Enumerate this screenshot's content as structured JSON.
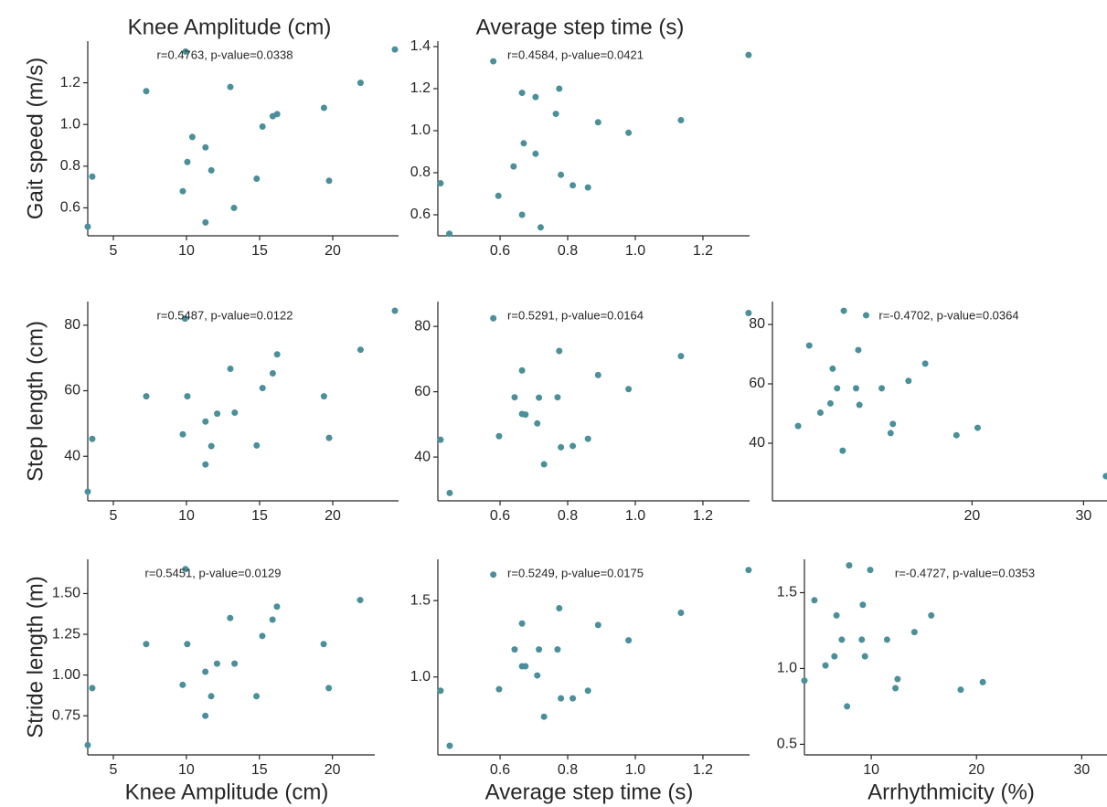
{
  "chart_data": [
    {
      "type": "scatter",
      "title": "Knee Amplitude (cm)",
      "y_label": "Gait speed (m/s)",
      "annotation": "r=0.4763, p-value=0.0338",
      "color": "#4a8f99",
      "x": [
        3.25,
        3.56,
        7.25,
        9.94,
        10.06,
        9.75,
        10.4,
        11.3,
        11.7,
        11.3,
        13.0,
        13.25,
        14.8,
        15.2,
        15.9,
        16.2,
        19.4,
        19.75,
        21.9,
        24.25
      ],
      "y": [
        0.51,
        0.75,
        1.16,
        1.35,
        0.82,
        0.68,
        0.94,
        0.89,
        0.78,
        0.53,
        1.18,
        0.6,
        0.74,
        0.99,
        1.04,
        1.05,
        1.08,
        0.73,
        1.2,
        1.36
      ],
      "xlim": [
        3.25,
        24.5
      ],
      "ylim": [
        0.466,
        1.4
      ],
      "xticks": [
        5,
        10,
        15,
        20
      ],
      "yticks": [
        0.6,
        0.8,
        {
          "value": 1,
          "label": "1.0"
        },
        1.2
      ]
    },
    {
      "type": "scatter",
      "title": "Average step time (s)",
      "annotation": "r=0.4584, p-value=0.0421",
      "color": "#4a8f99",
      "x": [
        0.424,
        0.45,
        0.58,
        0.595,
        0.64,
        0.665,
        0.665,
        0.67,
        0.705,
        0.705,
        0.72,
        0.765,
        0.775,
        0.78,
        0.815,
        0.86,
        0.89,
        0.98,
        1.135,
        1.335
      ],
      "y": [
        0.75,
        0.51,
        1.33,
        0.69,
        0.83,
        1.18,
        0.6,
        0.94,
        1.16,
        0.89,
        0.54,
        1.08,
        1.2,
        0.79,
        0.74,
        0.73,
        1.04,
        0.99,
        1.05,
        1.36
      ],
      "xlim": [
        0.416,
        1.338
      ],
      "ylim": [
        0.5,
        1.426
      ],
      "xticks": [
        0.6,
        0.8,
        {
          "value": 1,
          "label": "1.0"
        },
        1.2
      ],
      "yticks": [
        0.6,
        0.8,
        {
          "value": 1,
          "label": "1.0"
        },
        1.2,
        1.4
      ]
    },
    {
      "type": "scatter",
      "y_label": "Step length (cm)",
      "annotation": "r=0.5487, p-value=0.0122",
      "color": "#4a8f99",
      "x": [
        3.25,
        3.56,
        7.25,
        9.9,
        9.75,
        10.06,
        11.3,
        11.3,
        11.7,
        12.1,
        13.0,
        13.3,
        14.8,
        15.2,
        15.9,
        16.2,
        19.4,
        19.75,
        21.9,
        24.25
      ],
      "y": [
        29.2,
        45.3,
        58.3,
        82,
        46.7,
        58.3,
        50.6,
        37.5,
        43.1,
        53,
        66.7,
        53.3,
        43.3,
        60.8,
        65.3,
        71.1,
        58.3,
        45.6,
        72.5,
        84.4
      ],
      "xlim": [
        3.25,
        24.5
      ],
      "ylim": [
        26.4,
        87.2
      ],
      "xticks": [
        5,
        10,
        15,
        20
      ],
      "yticks": [
        40,
        60,
        80
      ]
    },
    {
      "type": "scatter",
      "annotation": "r=0.5291, p-value=0.0164",
      "color": "#4a8f99",
      "x": [
        0.424,
        0.451,
        0.58,
        0.597,
        0.643,
        0.665,
        0.665,
        0.675,
        0.71,
        0.715,
        0.73,
        0.77,
        0.775,
        0.78,
        0.815,
        0.86,
        0.89,
        0.98,
        1.135,
        1.335
      ],
      "y": [
        45.3,
        29,
        82.5,
        46.4,
        58.3,
        66.5,
        53.2,
        53,
        50.3,
        58.2,
        37.8,
        58.3,
        72.5,
        43,
        43.4,
        45.6,
        65.1,
        60.8,
        70.9,
        84.1
      ],
      "xlim": [
        0.416,
        1.338
      ],
      "ylim": [
        26.6,
        87.6
      ],
      "xticks": [
        0.6,
        0.8,
        {
          "value": 1,
          "label": "1.0"
        },
        1.2
      ],
      "yticks": [
        40,
        60,
        80
      ]
    },
    {
      "type": "scatter",
      "annotation": "r=-0.4702, p-value=0.0364",
      "color": "#4a8f99",
      "x": [
        4.4,
        5.4,
        6.4,
        7.3,
        7.5,
        7.9,
        8.4,
        8.5,
        9.6,
        9.8,
        9.9,
        10.5,
        11.9,
        12.7,
        12.9,
        14.3,
        15.8,
        18.6,
        20.5,
        32
      ],
      "y": [
        45.8,
        72.9,
        50.3,
        53.4,
        65.1,
        58.5,
        37.5,
        84.6,
        58.5,
        71.4,
        52.9,
        83.1,
        58.5,
        43.4,
        46.5,
        61,
        66.8,
        42.7,
        45.2,
        28.9
      ],
      "xlim": [
        2.1,
        32.1
      ],
      "ylim": [
        20.6,
        87.7
      ],
      "xticks": [
        20,
        30
      ],
      "yticks": [
        40,
        60,
        80
      ]
    },
    {
      "type": "scatter",
      "x_label": "Knee Amplitude (cm)",
      "y_label": "Stride length (m)",
      "annotation": "r=0.5451, p-value=0.0129",
      "color": "#4a8f99",
      "x": [
        3.25,
        3.56,
        7.25,
        9.94,
        9.75,
        10.06,
        11.3,
        11.3,
        11.7,
        12.1,
        13.0,
        13.3,
        14.8,
        15.2,
        15.9,
        16.2,
        19.4,
        19.75,
        21.9
      ],
      "y": [
        0.57,
        0.92,
        1.19,
        1.65,
        0.94,
        1.19,
        1.02,
        0.75,
        0.87,
        1.07,
        1.35,
        1.07,
        0.87,
        1.24,
        1.34,
        1.42,
        1.19,
        0.92,
        1.46
      ],
      "xlim": [
        3.25,
        22.9
      ],
      "ylim": [
        0.51,
        1.71
      ],
      "xticks": [
        5,
        10,
        15,
        20
      ],
      "yticks": [
        0.75,
        {
          "value": 1,
          "label": "1.00"
        },
        1.25,
        {
          "value": 1.5,
          "label": "1.50"
        }
      ]
    },
    {
      "type": "scatter",
      "x_label": "Average step time (s)",
      "annotation": "r=0.5249, p-value=0.0175",
      "color": "#4a8f99",
      "x": [
        0.424,
        0.451,
        0.58,
        0.597,
        0.643,
        0.665,
        0.665,
        0.675,
        0.71,
        0.715,
        0.73,
        0.77,
        0.775,
        0.78,
        0.815,
        0.86,
        0.89,
        0.98,
        1.135,
        1.335
      ],
      "y": [
        0.91,
        0.55,
        1.67,
        0.92,
        1.18,
        1.35,
        1.07,
        1.07,
        1.01,
        1.18,
        0.74,
        1.18,
        1.45,
        0.86,
        0.86,
        0.91,
        1.34,
        1.24,
        1.42,
        1.7
      ],
      "xlim": [
        0.416,
        1.338
      ],
      "ylim": [
        0.49,
        1.77
      ],
      "xticks": [
        0.6,
        0.8,
        {
          "value": 1,
          "label": "1.0"
        },
        1.2
      ],
      "yticks": [
        {
          "value": 1,
          "label": "1.0"
        },
        1.5
      ]
    },
    {
      "type": "scatter",
      "x_label": "Arrhythmicity (%)",
      "annotation": "r=-0.4727, p-value=0.0353",
      "color": "#4a8f99",
      "x": [
        3.65,
        4.6,
        5.65,
        6.5,
        6.7,
        7.2,
        7.7,
        7.9,
        9.1,
        9.2,
        9.4,
        9.9,
        11.5,
        12.3,
        12.5,
        14.1,
        15.7,
        18.5,
        20.6
      ],
      "y": [
        0.92,
        1.45,
        1.02,
        1.08,
        1.35,
        1.19,
        0.75,
        1.68,
        1.19,
        1.42,
        1.08,
        1.65,
        1.19,
        0.87,
        0.93,
        1.24,
        1.35,
        0.86,
        0.91
      ],
      "xlim": [
        3.65,
        32.4
      ],
      "ylim": [
        0.43,
        1.72
      ],
      "xticks": [
        10,
        20,
        30
      ],
      "yticks": [
        0.5,
        {
          "value": 1,
          "label": "1.0"
        },
        1.5
      ]
    }
  ]
}
